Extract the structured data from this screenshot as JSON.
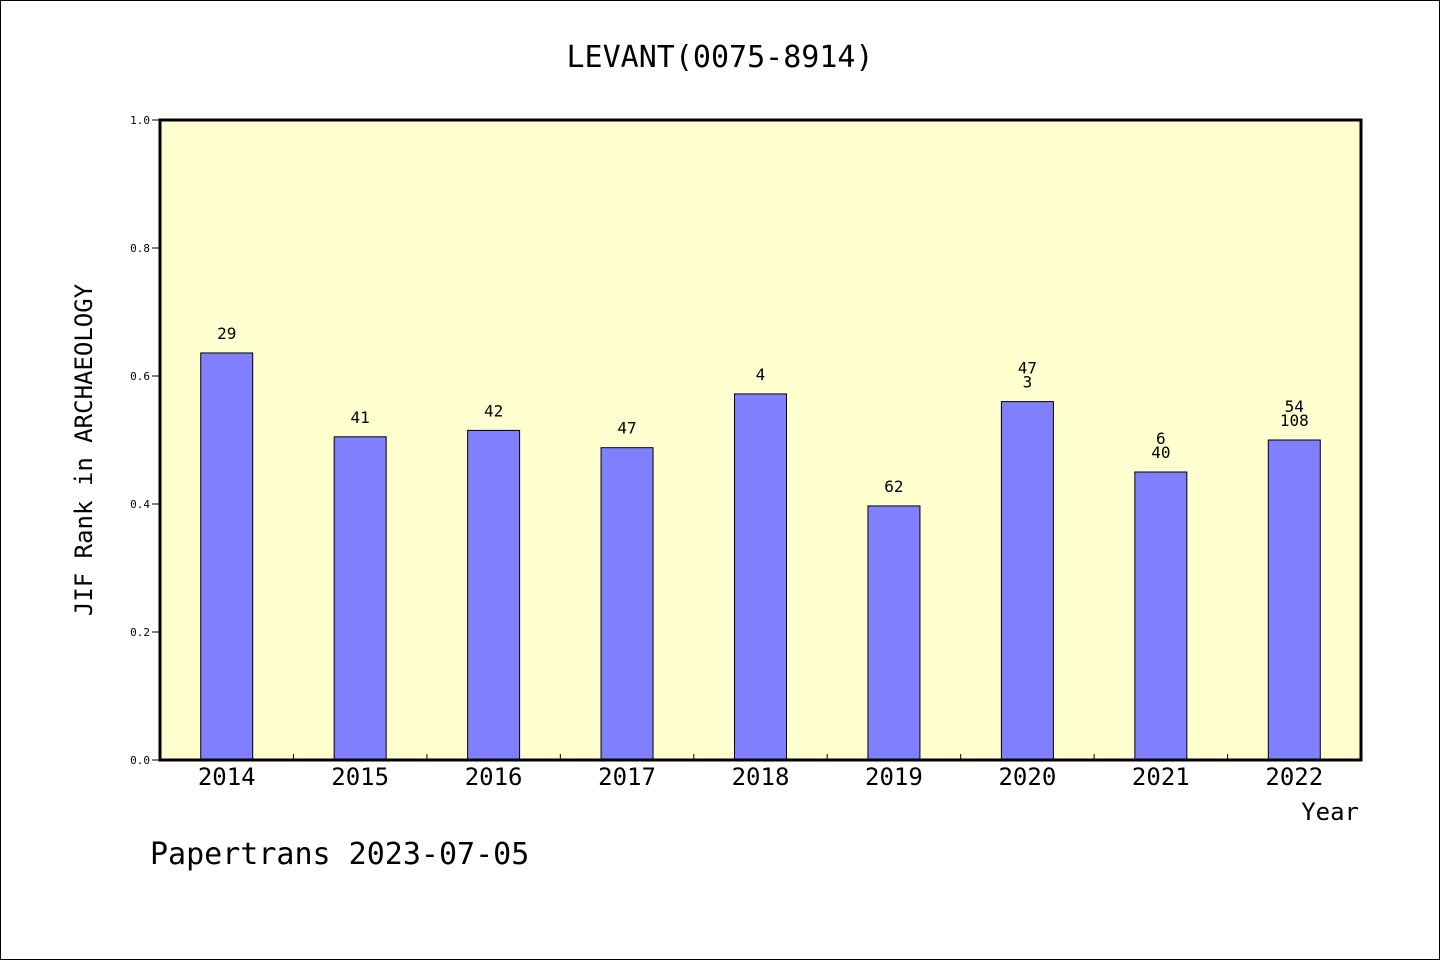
{
  "chart_data": {
    "type": "bar",
    "title": "LEVANT(0075-8914)",
    "xlabel": "Year",
    "ylabel": "JIF Rank in ARCHAEOLOGY",
    "ylim": [
      0,
      1.0
    ],
    "yticks": [
      "0.0",
      "0.2",
      "0.4",
      "0.6",
      "0.8",
      "1.0"
    ],
    "grid": false,
    "background_color": "#ffffd0",
    "bar_color": "#8080ff",
    "categories": [
      "2014",
      "2015",
      "2016",
      "2017",
      "2018",
      "2019",
      "2020",
      "2021",
      "2022"
    ],
    "values": [
      0.636,
      0.505,
      0.515,
      0.488,
      0.572,
      0.397,
      0.56,
      0.45,
      0.5
    ],
    "data_labels": [
      [
        "29"
      ],
      [
        "41"
      ],
      [
        "42"
      ],
      [
        "47"
      ],
      [
        "4"
      ],
      [
        "62"
      ],
      [
        "47",
        "3"
      ],
      [
        "6",
        "40"
      ],
      [
        "54",
        "108"
      ]
    ]
  },
  "footer": "Papertrans 2023-07-05"
}
